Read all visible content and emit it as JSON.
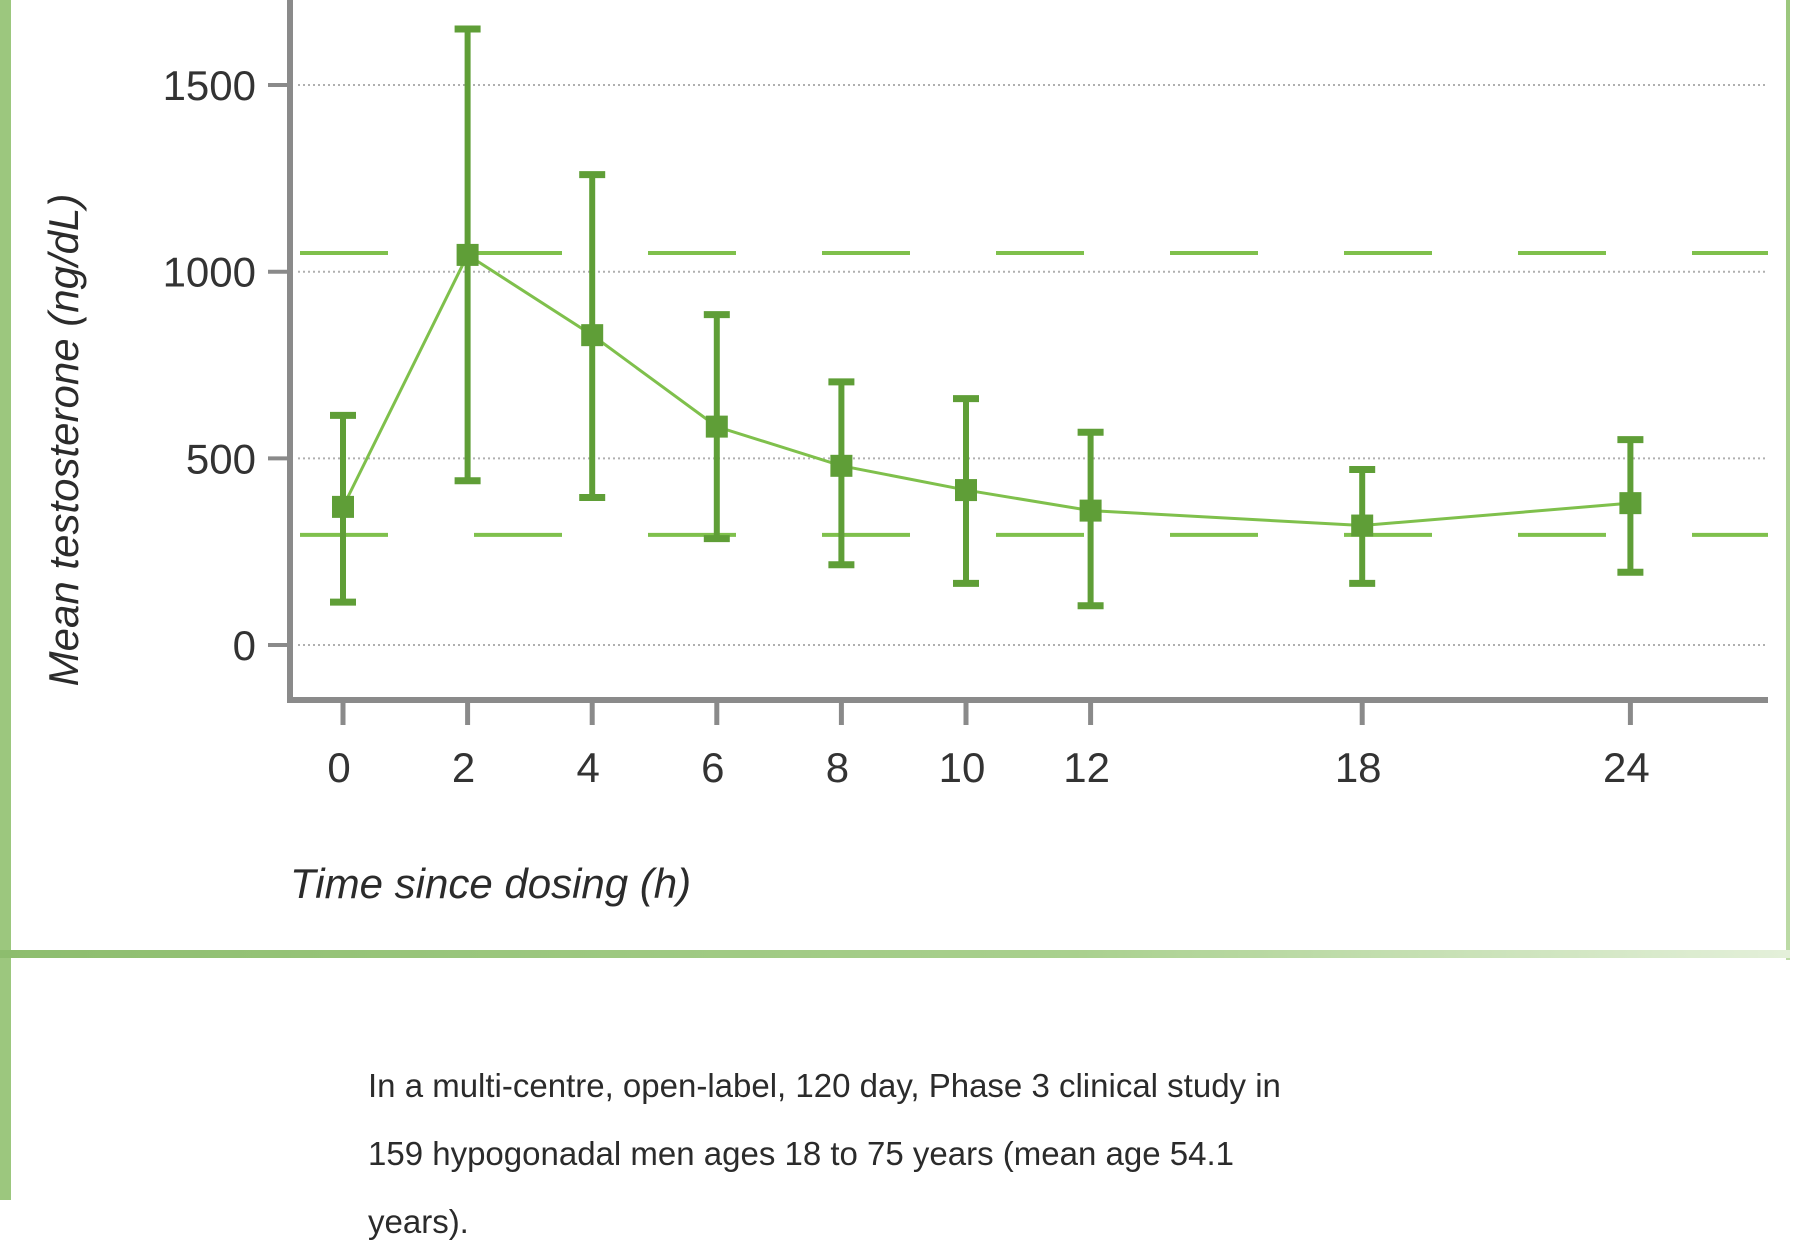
{
  "colors": {
    "series": "#5f9e37",
    "reference_lines": "#7fc04c",
    "axis": "#8a8a8a",
    "gridlines": "#b0b0b0",
    "frame": "#9cc77e"
  },
  "chart_data": {
    "type": "line",
    "xlabel": "Time since dosing (h)",
    "ylabel": "Mean testosterone (ng/dL)",
    "x": [
      0,
      2,
      4,
      6,
      8,
      10,
      12,
      18,
      24
    ],
    "xtick_labels": [
      "0",
      "2",
      "4",
      "6",
      "8",
      "10",
      "12",
      "18",
      "24"
    ],
    "ytick_labels": [
      "0",
      "500",
      "1000",
      "1500"
    ],
    "yticks": [
      0,
      500,
      1000,
      1500
    ],
    "ylim": [
      -150,
      1750
    ],
    "series": [
      {
        "values": [
          370,
          1045,
          830,
          585,
          480,
          415,
          360,
          320,
          380
        ],
        "error_low": [
          115,
          440,
          395,
          285,
          215,
          165,
          105,
          165,
          195
        ],
        "error_high": [
          615,
          1650,
          1260,
          885,
          705,
          660,
          570,
          470,
          550
        ],
        "marker": "square"
      }
    ],
    "reference_lines": [
      1050,
      295
    ],
    "reference_line_style": "dashed",
    "grid": "horizontal dotted at y ticks"
  },
  "caption": {
    "lines": [
      "In a multi-centre, open-label, 120 day, Phase 3 clinical study in",
      "159 hypogonadal men ages 18 to 75 years (mean age 54.1",
      "years)."
    ]
  }
}
